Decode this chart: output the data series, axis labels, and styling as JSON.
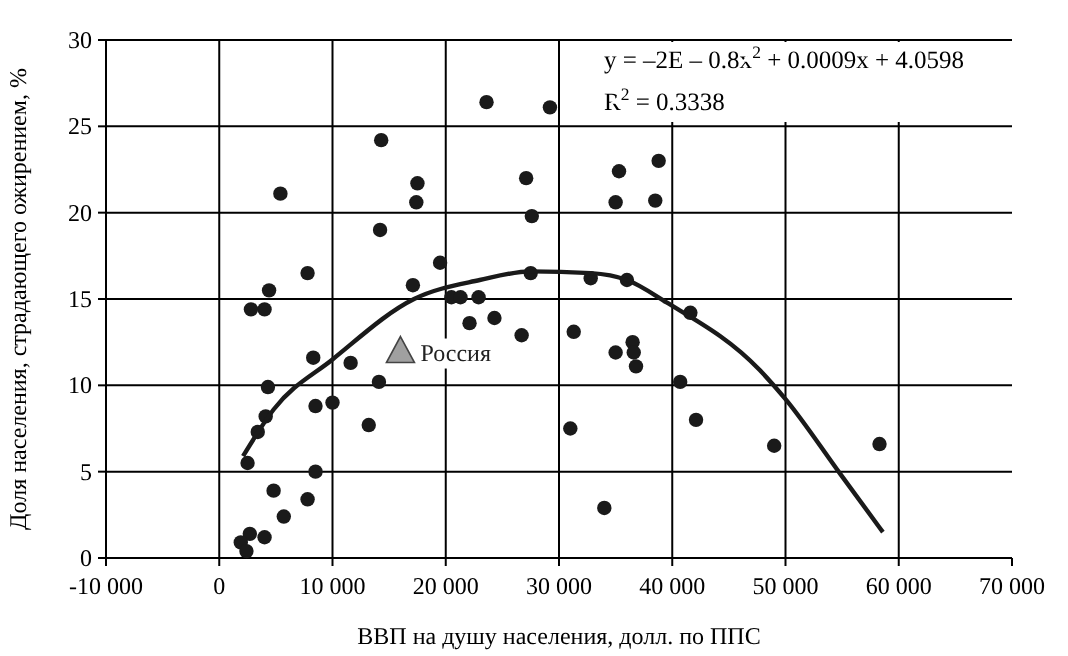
{
  "chart_data": {
    "type": "scatter",
    "xlabel": "ВВП на душу населения, долл. по ППС",
    "ylabel": "Доля населения, страдающего ожирением, %",
    "xlim": [
      -10000,
      70000
    ],
    "xticks": [
      {
        "value": -10000,
        "label": "-10 000"
      },
      {
        "value": 0,
        "label": "0"
      },
      {
        "value": 10000,
        "label": "10 000"
      },
      {
        "value": 20000,
        "label": "20 000"
      },
      {
        "value": 30000,
        "label": "30 000"
      },
      {
        "value": 40000,
        "label": "40 000"
      },
      {
        "value": 50000,
        "label": "50 000"
      },
      {
        "value": 60000,
        "label": "60 000"
      },
      {
        "value": 70000,
        "label": "70 000"
      }
    ],
    "ylim": [
      0,
      30
    ],
    "yticks": [
      0,
      5,
      10,
      15,
      20,
      25,
      30
    ],
    "grid": true,
    "annotations": [
      "y = –2E – 0.8x$^{2}$ + 0.0009x + 4.0598",
      "R$^{2}$ = 0.3338"
    ],
    "series": [
      {
        "color": "#1a1a1a",
        "marker": "circle",
        "x": [
          23600,
          29200,
          14300,
          27100,
          17500,
          5400,
          17400,
          27600,
          14200,
          19500,
          7800,
          27500,
          17100,
          4400,
          20500,
          21300,
          22900,
          2800,
          4000,
          24300,
          22100,
          26700,
          31300,
          8300,
          11600,
          14100,
          4300,
          8500,
          10000,
          4100,
          13200,
          3400,
          31000,
          2500,
          8500,
          4800,
          7800,
          5700,
          4000,
          2700,
          1900,
          2400,
          35300,
          38800,
          35000,
          38500,
          32800,
          36000,
          41600,
          35000,
          36500,
          36600,
          36800,
          40700,
          42100,
          49000,
          58300,
          34000
        ],
        "values": [
          26.4,
          26.1,
          24.2,
          22.0,
          21.7,
          21.1,
          20.6,
          19.8,
          19.0,
          17.1,
          16.5,
          16.5,
          15.8,
          15.5,
          15.1,
          15.1,
          15.1,
          14.4,
          14.4,
          13.9,
          13.6,
          12.9,
          13.1,
          11.6,
          11.3,
          10.2,
          9.9,
          8.8,
          9.0,
          8.2,
          7.7,
          7.3,
          7.5,
          5.5,
          5.0,
          3.9,
          3.4,
          2.4,
          1.2,
          1.4,
          0.9,
          0.4,
          22.4,
          23.0,
          20.6,
          20.7,
          16.2,
          16.1,
          14.2,
          11.9,
          12.5,
          11.9,
          11.1,
          10.2,
          8.0,
          6.5,
          6.6,
          2.9
        ]
      },
      {
        "name": "Россия",
        "color": "#a0a0a0",
        "marker": "triangle",
        "x": [
          16000
        ],
        "values": [
          11.9
        ]
      },
      {
        "type": "line",
        "marker": "none",
        "color": "#1a1a1a",
        "x": [
          2100,
          4800,
          10000,
          17200,
          23000,
          27500,
          32800,
          36000,
          39500,
          47700,
          50000,
          54800,
          58600
        ],
        "values": [
          5.9,
          8.6,
          11.5,
          15.0,
          16.1,
          16.6,
          16.5,
          16.1,
          14.8,
          10.9,
          9.2,
          4.9,
          1.5
        ]
      }
    ]
  }
}
